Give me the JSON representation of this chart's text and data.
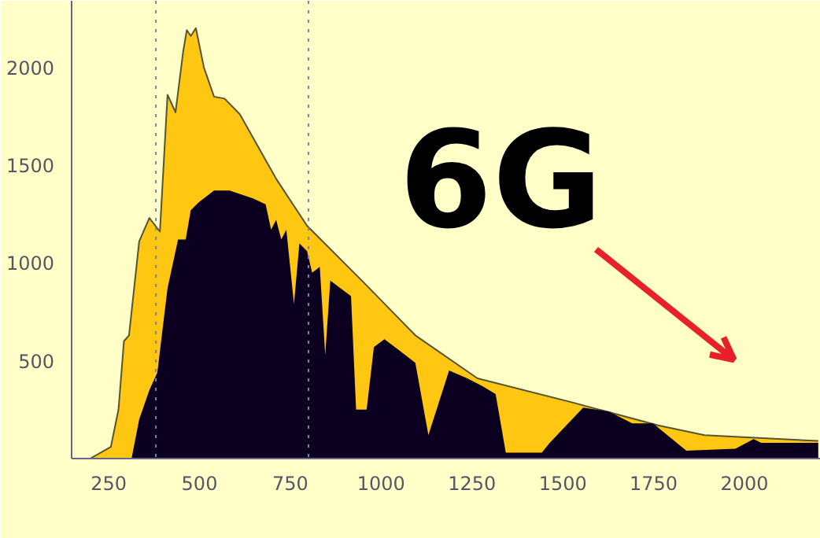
{
  "chart_data": {
    "type": "area",
    "series": [
      {
        "color": "#ffc612",
        "x": [
          199,
          256,
          277,
          292,
          306,
          334,
          362,
          391,
          412,
          434,
          455,
          465,
          476,
          490,
          512,
          540,
          569,
          611,
          711,
          796,
          952,
          1094,
          1265,
          1520,
          1762,
          1890,
          2203
        ],
        "values": [
          0,
          60,
          250,
          600,
          630,
          1110,
          1230,
          1160,
          1860,
          1770,
          2080,
          2190,
          2160,
          2200,
          2000,
          1850,
          1840,
          1760,
          1430,
          1190,
          900,
          630,
          410,
          290,
          170,
          120,
          90
        ]
      },
      {
        "color": "#0b0020",
        "x": [
          313,
          334,
          362,
          384,
          412,
          441,
          462,
          476,
          498,
          540,
          583,
          647,
          682,
          697,
          711,
          725,
          739,
          760,
          775,
          796,
          810,
          831,
          846,
          860,
          917,
          931,
          960,
          980,
          1009,
          1094,
          1130,
          1187,
          1237,
          1279,
          1315,
          1343,
          1442,
          1464,
          1556,
          1627,
          1691,
          1748,
          1840,
          1975,
          2025,
          2046,
          2203
        ],
        "values": [
          0,
          200,
          350,
          440,
          870,
          1120,
          1120,
          1270,
          1310,
          1370,
          1370,
          1330,
          1300,
          1170,
          1220,
          1120,
          1170,
          790,
          1100,
          1060,
          950,
          980,
          530,
          910,
          830,
          250,
          250,
          570,
          610,
          490,
          120,
          450,
          410,
          370,
          330,
          30,
          30,
          80,
          260,
          240,
          180,
          180,
          40,
          50,
          100,
          80,
          80
        ]
      }
    ],
    "xlim": [
      148,
      2210
    ],
    "xticks": [
      250,
      500,
      750,
      1000,
      1250,
      1500,
      1750,
      2000
    ],
    "ylim": [
      0,
      2340
    ],
    "yticks": [
      500,
      1000,
      1500,
      2000
    ],
    "grid": false,
    "ref_lines": [
      {
        "axis": "x",
        "value": 380,
        "line_style": "dotted",
        "color": "#8080a0"
      },
      {
        "axis": "x",
        "value": 800,
        "line_style": "dotted",
        "color": "#8080a0"
      }
    ],
    "annotations": [
      "6G"
    ]
  }
}
